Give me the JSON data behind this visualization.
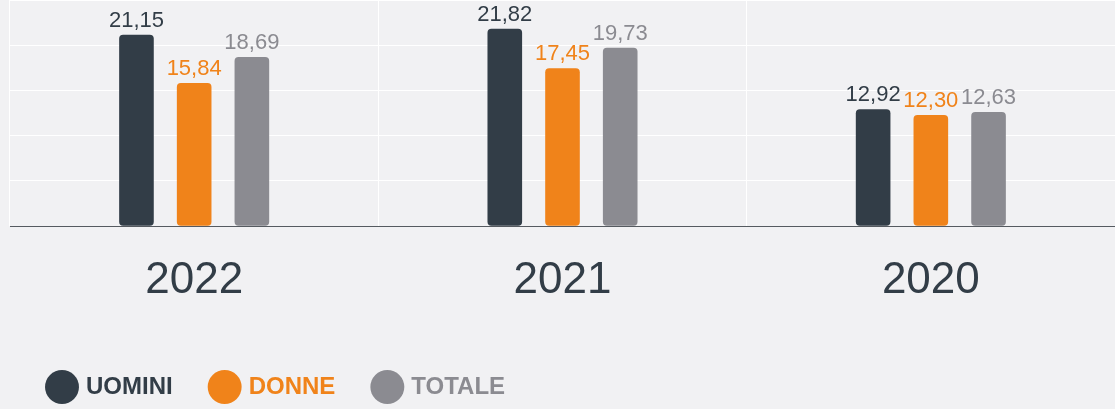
{
  "chart_data": {
    "type": "bar",
    "categories": [
      "2022",
      "2021",
      "2020"
    ],
    "series": [
      {
        "name": "UOMINI",
        "color": "#323d47",
        "values": [
          21.15,
          21.82,
          12.92
        ],
        "value_labels": [
          "21,15",
          "21,82",
          "12,92"
        ]
      },
      {
        "name": "DONNE",
        "color": "#f0831a",
        "values": [
          15.84,
          17.45,
          12.3
        ],
        "value_labels": [
          "15,84",
          "17,45",
          "12,30"
        ]
      },
      {
        "name": "TOTALE",
        "color": "#8b8b91",
        "values": [
          18.69,
          19.73,
          12.63
        ],
        "value_labels": [
          "18,69",
          "19,73",
          "12,63"
        ]
      }
    ],
    "tick_labels": "x",
    "grid": true,
    "legend": "bottom left"
  }
}
